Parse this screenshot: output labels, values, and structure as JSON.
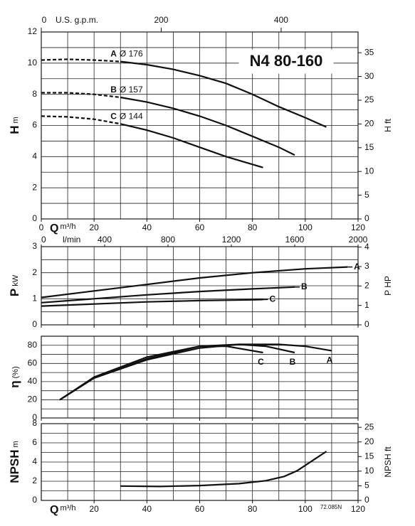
{
  "chart_data": [
    {
      "type": "line",
      "title": "N4 80-160",
      "ylabel": "H",
      "yunit": "m",
      "y2label": "H ft",
      "xlim": [
        0,
        120
      ],
      "xticks": [
        0,
        20,
        40,
        60,
        80,
        100,
        120
      ],
      "xlabel": "Q",
      "xunit": "m³/h",
      "x2label": "l/min",
      "x2lim": [
        0,
        2000
      ],
      "x2ticks": [
        0,
        400,
        800,
        1200,
        1600,
        2000
      ],
      "x3label": "U.S. g.p.m.",
      "x3lim": [
        0,
        528.3
      ],
      "x3ticks": [
        0,
        200,
        400
      ],
      "ylim": [
        0,
        12
      ],
      "yticks": [
        0,
        2,
        4,
        6,
        8,
        10,
        12
      ],
      "y2lim": [
        0,
        39.37
      ],
      "y2ticks": [
        0,
        5,
        10,
        15,
        20,
        25,
        30,
        35
      ],
      "grid": true,
      "dashed_below_x": 30,
      "series_label": "above",
      "series": [
        {
          "name": "A",
          "diameter": "Ø 176",
          "color": "#111",
          "x": [
            0,
            10,
            20,
            30,
            40,
            50,
            60,
            70,
            80,
            90,
            100,
            108
          ],
          "values": [
            10.2,
            10.25,
            10.2,
            10.1,
            9.9,
            9.6,
            9.2,
            8.7,
            8.0,
            7.2,
            6.5,
            5.9
          ]
        },
        {
          "name": "B",
          "diameter": "Ø 157",
          "color": "#111",
          "x": [
            0,
            10,
            20,
            30,
            40,
            50,
            60,
            70,
            80,
            90,
            96
          ],
          "values": [
            8.1,
            8.1,
            8.0,
            7.8,
            7.5,
            7.1,
            6.6,
            6.0,
            5.3,
            4.6,
            4.1
          ]
        },
        {
          "name": "C",
          "diameter": "Ø 144",
          "color": "#111",
          "x": [
            0,
            10,
            20,
            30,
            40,
            50,
            60,
            70,
            80,
            84
          ],
          "values": [
            6.6,
            6.55,
            6.4,
            6.1,
            5.7,
            5.2,
            4.6,
            4.0,
            3.5,
            3.3
          ]
        }
      ]
    },
    {
      "type": "line",
      "ylabel": "P",
      "yunit": "kW",
      "y2label": "P HP",
      "xlim": [
        0,
        120
      ],
      "xticks": [
        0,
        20,
        40,
        60,
        80,
        100,
        120
      ],
      "xtick_labels": false,
      "ylim": [
        0,
        3
      ],
      "yticks": [
        0,
        1,
        2,
        3
      ],
      "y2lim": [
        0,
        4.023
      ],
      "y2ticks": [
        0,
        1,
        2,
        3,
        4
      ],
      "grid": true,
      "series_label": "end",
      "series": [
        {
          "name": "A",
          "color": "#111",
          "x": [
            0,
            20,
            40,
            60,
            80,
            100,
            116
          ],
          "values": [
            1.05,
            1.3,
            1.55,
            1.8,
            2.0,
            2.15,
            2.22
          ]
        },
        {
          "name": "B",
          "color": "#111",
          "x": [
            0,
            20,
            40,
            60,
            80,
            96
          ],
          "values": [
            0.85,
            1.0,
            1.15,
            1.28,
            1.38,
            1.45
          ]
        },
        {
          "name": "C",
          "color": "#111",
          "x": [
            0,
            20,
            40,
            60,
            80,
            84
          ],
          "values": [
            0.72,
            0.8,
            0.88,
            0.93,
            0.96,
            0.97
          ]
        }
      ]
    },
    {
      "type": "line",
      "ylabel": "η",
      "yunit": "(%)",
      "xlim": [
        0,
        120
      ],
      "xticks": [
        0,
        20,
        40,
        60,
        80,
        100,
        120
      ],
      "xtick_labels": false,
      "ylim": [
        0,
        90
      ],
      "yticks": [
        0,
        20,
        40,
        60,
        80
      ],
      "grid": true,
      "series_label": "below",
      "series": [
        {
          "name": "A",
          "color": "#111",
          "x": [
            7,
            20,
            40,
            60,
            75,
            90,
            100,
            110
          ],
          "values": [
            20,
            44,
            64,
            77,
            81,
            81,
            79,
            74
          ]
        },
        {
          "name": "B",
          "color": "#111",
          "x": [
            7,
            20,
            40,
            60,
            75,
            85,
            96
          ],
          "values": [
            20,
            44,
            65,
            79,
            81,
            79,
            72
          ]
        },
        {
          "name": "C",
          "color": "#111",
          "x": [
            7,
            20,
            40,
            60,
            70,
            84
          ],
          "values": [
            20,
            45,
            67,
            79,
            79,
            72
          ]
        }
      ]
    },
    {
      "type": "line",
      "ylabel": "NPSH",
      "yunit": "m",
      "y2label": "NPSH ft",
      "code": "72.085N",
      "xlim": [
        0,
        120
      ],
      "xticks": [
        20,
        40,
        60,
        80,
        100,
        120
      ],
      "xlabel": "Q",
      "xunit": "m³/h",
      "ylim": [
        0,
        8
      ],
      "yticks": [
        0,
        2,
        4,
        6,
        8
      ],
      "y2lim": [
        0,
        26.25
      ],
      "y2ticks": [
        0,
        5,
        10,
        15,
        20,
        25
      ],
      "grid": true,
      "series": [
        {
          "color": "#111",
          "x": [
            30,
            45,
            60,
            75,
            85,
            92,
            97,
            103,
            108
          ],
          "values": [
            1.5,
            1.45,
            1.55,
            1.75,
            2.05,
            2.5,
            3.1,
            4.2,
            5.1
          ]
        }
      ]
    }
  ]
}
